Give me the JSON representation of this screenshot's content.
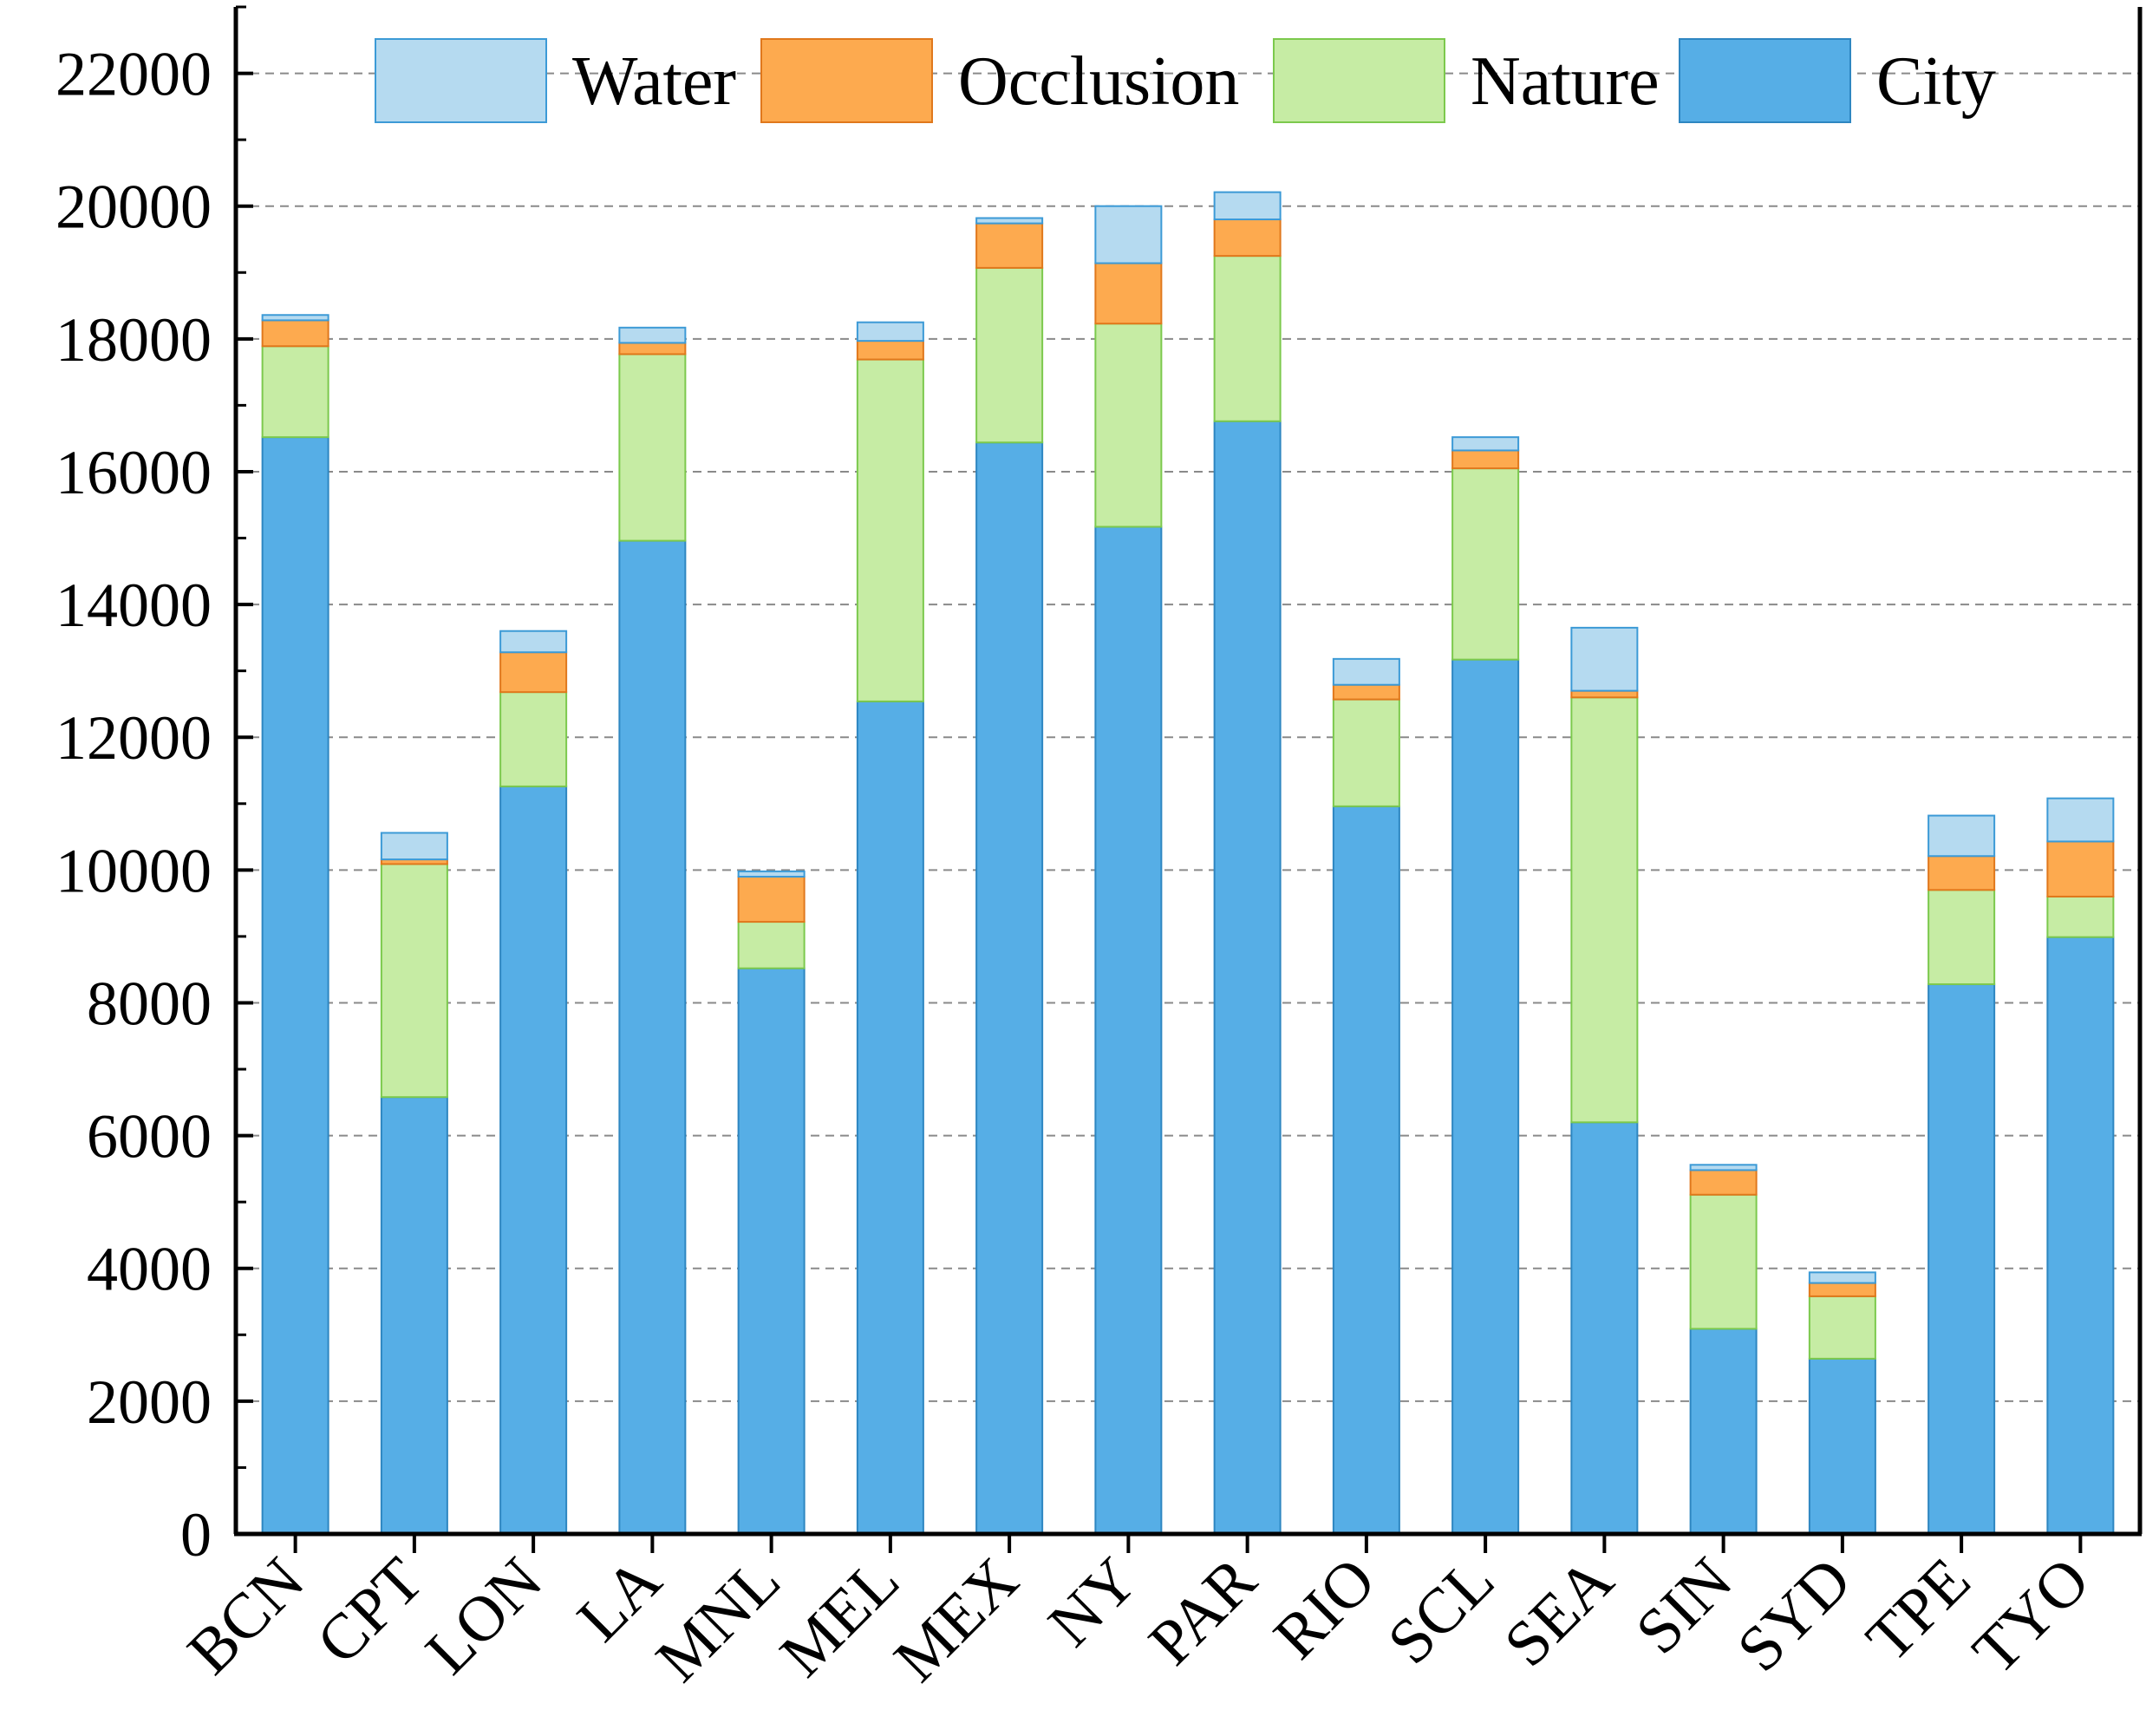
{
  "chart_data": {
    "type": "bar",
    "stacked": true,
    "categories": [
      "BCN",
      "CPT",
      "LON",
      "LA",
      "MNL",
      "MEL",
      "MEX",
      "NY",
      "PAR",
      "RIO",
      "SCL",
      "SEA",
      "SIN",
      "SYD",
      "TPE",
      "TYO"
    ],
    "series": [
      {
        "name": "City",
        "color": "#56aee6",
        "edge": "#2e86c1",
        "values": [
          16520,
          6580,
          11260,
          14960,
          8520,
          12540,
          16440,
          15170,
          16760,
          10960,
          13170,
          6200,
          3090,
          2640,
          8280,
          8990
        ]
      },
      {
        "name": "Nature",
        "color": "#c6eca4",
        "edge": "#7cc94d",
        "values": [
          1370,
          3510,
          1420,
          2810,
          700,
          5150,
          2630,
          3060,
          2490,
          1610,
          2880,
          6400,
          2020,
          940,
          1420,
          610
        ]
      },
      {
        "name": "Occlusion",
        "color": "#fdaa4f",
        "edge": "#e0781c",
        "values": [
          390,
          70,
          600,
          170,
          680,
          280,
          670,
          910,
          550,
          220,
          270,
          100,
          370,
          200,
          510,
          830
        ]
      },
      {
        "name": "Water",
        "color": "#b5daf0",
        "edge": "#3c9ad6",
        "values": [
          80,
          400,
          320,
          230,
          80,
          280,
          80,
          860,
          410,
          390,
          200,
          950,
          80,
          160,
          610,
          650
        ]
      }
    ],
    "legend_order": [
      "Water",
      "Occlusion",
      "Nature",
      "City"
    ],
    "legend_position": "top",
    "ylim": [
      0,
      23000
    ],
    "yticks": [
      0,
      2000,
      4000,
      6000,
      8000,
      10000,
      12000,
      14000,
      16000,
      18000,
      20000,
      22000
    ],
    "grid": "horizontal-dashed",
    "title": "",
    "xlabel": "",
    "ylabel": ""
  }
}
